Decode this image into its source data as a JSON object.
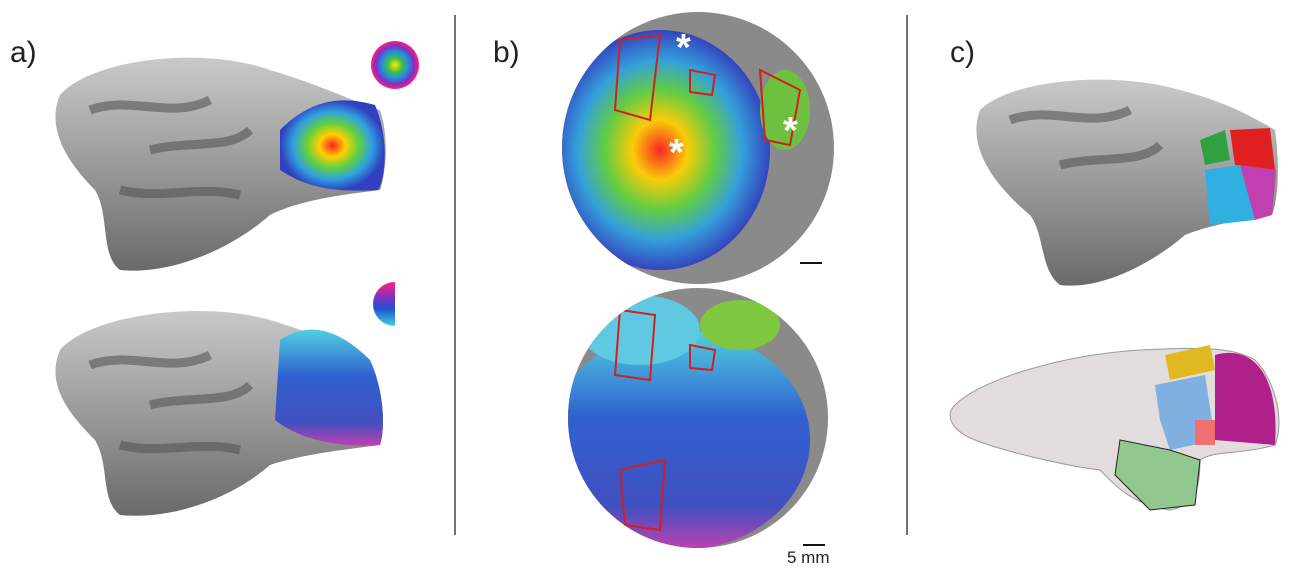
{
  "panels": [
    {
      "label": "a)"
    },
    {
      "label": "b)",
      "markers": [
        "*",
        "*",
        "*"
      ],
      "scale_bar": "5 mm"
    },
    {
      "label": "c)"
    }
  ]
}
